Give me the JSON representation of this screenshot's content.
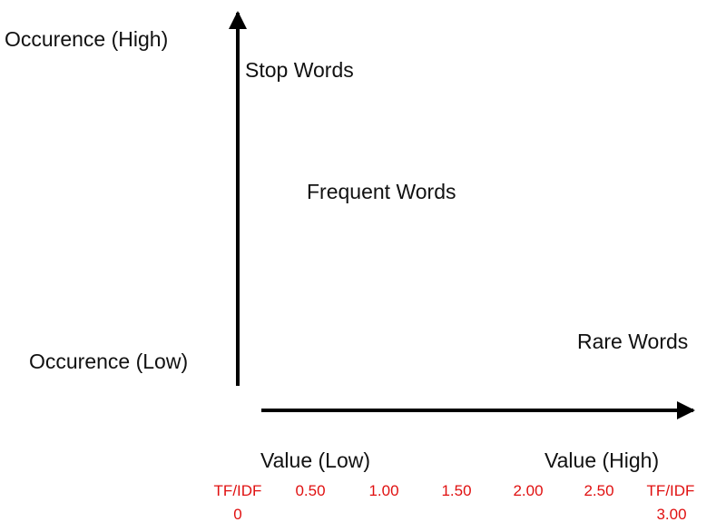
{
  "axes": {
    "y_high": "Occurence (High)",
    "y_low": "Occurence (Low)",
    "x_low": "Value (Low)",
    "x_high": "Value (High)"
  },
  "regions": [
    "Stop Words",
    "Frequent Words",
    "Rare Words"
  ],
  "scale": {
    "start_label": "TF/IDF",
    "end_label": "TF/IDF",
    "ticks": [
      "0",
      "0.50",
      "1.00",
      "1.50",
      "2.00",
      "2.50",
      "3.00"
    ]
  }
}
